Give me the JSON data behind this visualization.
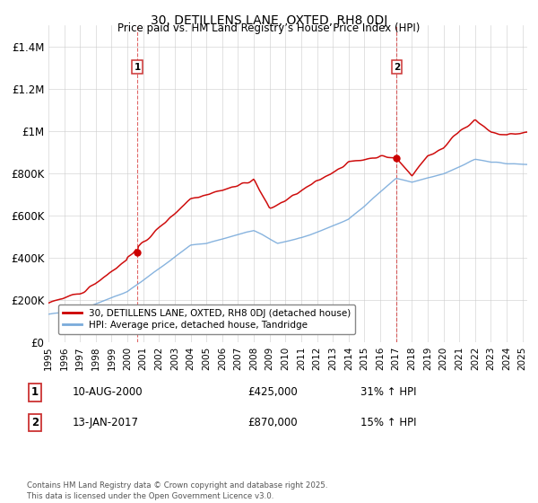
{
  "title": "30, DETILLENS LANE, OXTED, RH8 0DJ",
  "subtitle": "Price paid vs. HM Land Registry’s House Price Index (HPI)",
  "ylim": [
    0,
    1500000
  ],
  "yticks": [
    0,
    200000,
    400000,
    600000,
    800000,
    1000000,
    1200000,
    1400000
  ],
  "ytick_labels": [
    "£0",
    "£200K",
    "£400K",
    "£600K",
    "£800K",
    "£1M",
    "£1.2M",
    "£1.4M"
  ],
  "annotation1": {
    "label": "1",
    "date_str": "10-AUG-2000",
    "price": "£425,000",
    "pct": "31% ↑ HPI",
    "x_year": 2000.62,
    "y_val": 425000
  },
  "annotation2": {
    "label": "2",
    "date_str": "13-JAN-2017",
    "price": "£870,000",
    "pct": "15% ↑ HPI",
    "x_year": 2017.04,
    "y_val": 870000
  },
  "legend_line1": "30, DETILLENS LANE, OXTED, RH8 0DJ (detached house)",
  "legend_line2": "HPI: Average price, detached house, Tandridge",
  "footer": "Contains HM Land Registry data © Crown copyright and database right 2025.\nThis data is licensed under the Open Government Licence v3.0.",
  "line_color_red": "#cc0000",
  "line_color_blue": "#7aabdb",
  "vline_color": "#cc0000",
  "xlim_start": 1995,
  "xlim_end": 2025.3
}
